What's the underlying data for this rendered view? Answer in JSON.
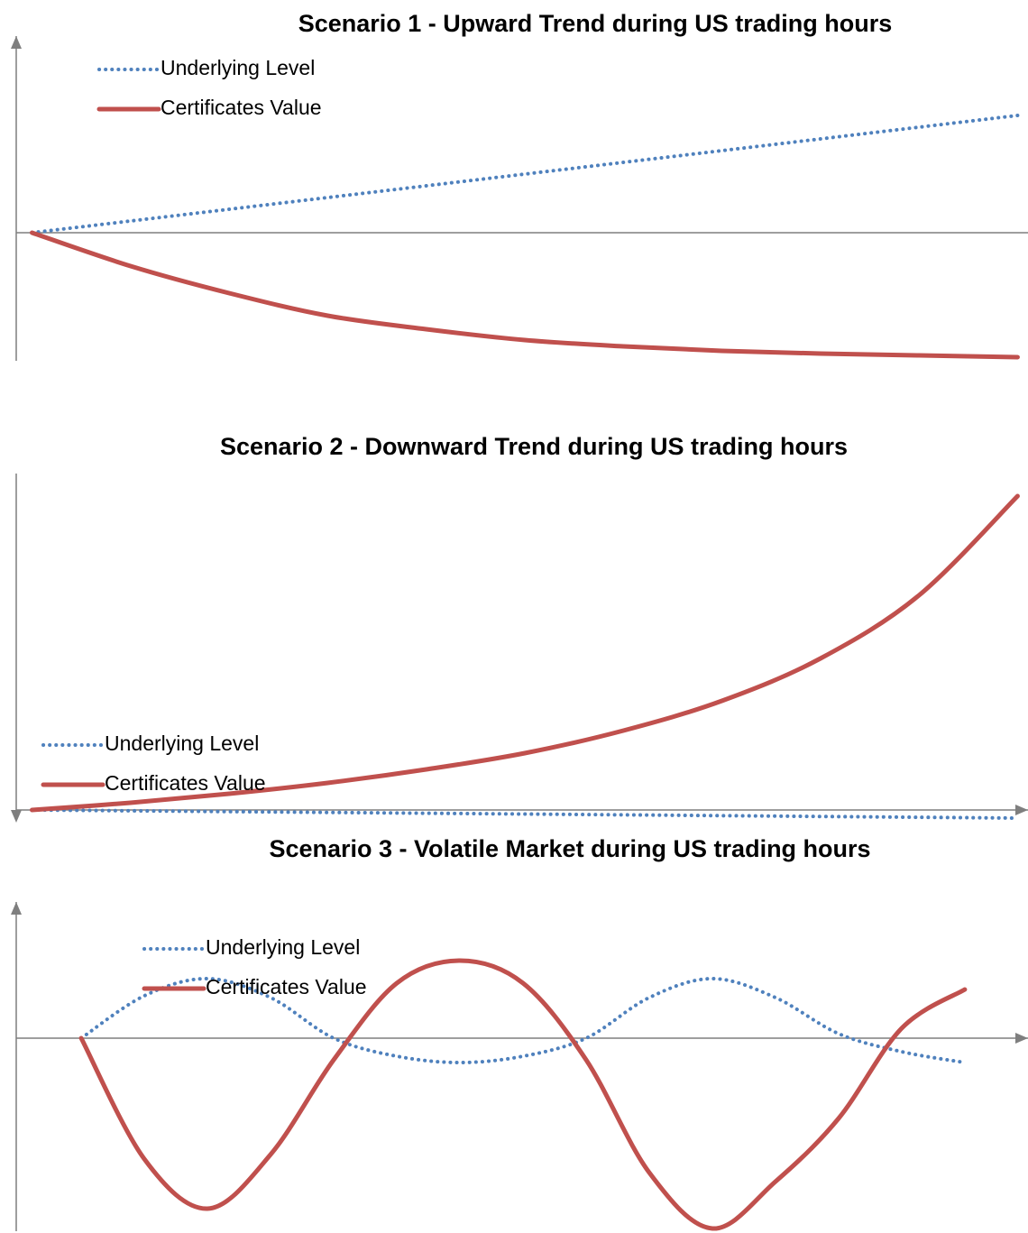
{
  "chart_data": [
    {
      "type": "line",
      "title": "Scenario 1 - Upward Trend during US trading hours",
      "x": [
        0,
        1,
        2,
        3,
        4,
        5,
        6,
        7,
        8,
        9,
        10
      ],
      "xlim": [
        -0.16,
        10.06
      ],
      "ylim": [
        -14.2,
        21.8
      ],
      "legend": "upper left",
      "series": [
        {
          "name": "Underlying Level",
          "color": "#4f81bd",
          "style": "dotted",
          "values": [
            0,
            1.3,
            2.6,
            3.9,
            5.2,
            6.5,
            7.8,
            9.1,
            10.4,
            11.7,
            13
          ]
        },
        {
          "name": "Certificates Value",
          "color": "#c0504d",
          "style": "solid",
          "values": [
            0,
            -3.7,
            -6.7,
            -9.2,
            -10.7,
            -11.9,
            -12.6,
            -13.1,
            -13.4,
            -13.6,
            -13.8
          ]
        }
      ]
    },
    {
      "type": "line",
      "title": "Scenario 2 - Downward Trend during US trading hours",
      "x": [
        0,
        1,
        2,
        3,
        4,
        5,
        6,
        7,
        8,
        9,
        10
      ],
      "xlim": [
        -0.16,
        10.06
      ],
      "ylim": [
        -0.7,
        37.3
      ],
      "legend": "lower left",
      "series": [
        {
          "name": "Underlying Level",
          "color": "#4f81bd",
          "style": "dotted",
          "values": [
            0,
            -0.09,
            -0.18,
            -0.27,
            -0.36,
            -0.45,
            -0.54,
            -0.63,
            -0.72,
            -0.81,
            -0.9
          ]
        },
        {
          "name": "Certificates Value",
          "color": "#c0504d",
          "style": "solid",
          "values": [
            0,
            0.8,
            1.8,
            3.0,
            4.5,
            6.3,
            8.8,
            12.1,
            16.8,
            23.8,
            34.8
          ]
        }
      ]
    },
    {
      "type": "line",
      "title": "Scenario 3 - Volatile Market during US trading hours",
      "x": [
        0,
        1,
        2,
        3,
        4,
        5,
        6,
        7,
        8,
        9,
        10,
        11,
        12,
        13,
        14
      ],
      "xlim": [
        -1.03,
        14.93
      ],
      "ylim": [
        -21.4,
        15.1
      ],
      "legend": "upper left",
      "series": [
        {
          "name": "Underlying Level",
          "color": "#4f81bd",
          "style": "dotted",
          "values": [
            0,
            4.7,
            6.6,
            4.5,
            0,
            -2.0,
            -2.7,
            -2.0,
            0,
            4.5,
            6.6,
            4.5,
            0.5,
            -1.5,
            -2.7
          ]
        },
        {
          "name": "Certificates Value",
          "color": "#c0504d",
          "style": "solid",
          "values": [
            0,
            -13.4,
            -18.9,
            -12.9,
            -2.4,
            6.1,
            8.6,
            6.1,
            -2.4,
            -14.9,
            -21.1,
            -15.9,
            -8.9,
            1.1,
            5.4
          ]
        }
      ]
    }
  ]
}
